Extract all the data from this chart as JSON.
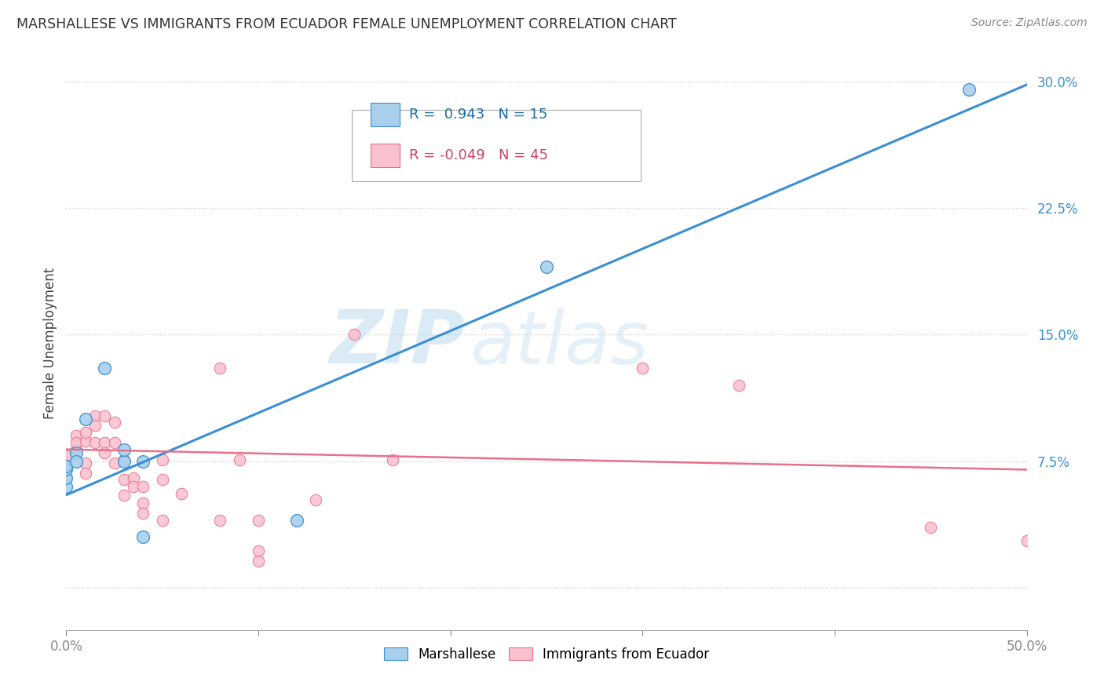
{
  "title": "MARSHALLESE VS IMMIGRANTS FROM ECUADOR FEMALE UNEMPLOYMENT CORRELATION CHART",
  "source": "Source: ZipAtlas.com",
  "ylabel": "Female Unemployment",
  "y_ticks": [
    0.0,
    0.075,
    0.15,
    0.225,
    0.3
  ],
  "y_tick_labels": [
    "",
    "7.5%",
    "15.0%",
    "22.5%",
    "30.0%"
  ],
  "x_range": [
    0.0,
    0.5
  ],
  "y_range": [
    -0.025,
    0.315
  ],
  "blue_R": 0.943,
  "blue_N": 15,
  "pink_R": -0.049,
  "pink_N": 45,
  "blue_color": "#a8d0ed",
  "pink_color": "#f9c0cf",
  "trendline_blue": "#3a8fd4",
  "trendline_pink": "#e8708a",
  "legend_label_blue": "Marshallese",
  "legend_label_pink": "Immigrants from Ecuador",
  "blue_points": [
    [
      0.0,
      0.06
    ],
    [
      0.0,
      0.065
    ],
    [
      0.0,
      0.07
    ],
    [
      0.0,
      0.072
    ],
    [
      0.005,
      0.08
    ],
    [
      0.005,
      0.075
    ],
    [
      0.01,
      0.1
    ],
    [
      0.02,
      0.13
    ],
    [
      0.03,
      0.075
    ],
    [
      0.03,
      0.082
    ],
    [
      0.04,
      0.075
    ],
    [
      0.04,
      0.03
    ],
    [
      0.12,
      0.04
    ],
    [
      0.25,
      0.19
    ],
    [
      0.47,
      0.295
    ]
  ],
  "pink_points": [
    [
      0.0,
      0.07
    ],
    [
      0.0,
      0.075
    ],
    [
      0.0,
      0.078
    ],
    [
      0.0,
      0.065
    ],
    [
      0.005,
      0.09
    ],
    [
      0.005,
      0.082
    ],
    [
      0.005,
      0.086
    ],
    [
      0.01,
      0.087
    ],
    [
      0.01,
      0.092
    ],
    [
      0.01,
      0.074
    ],
    [
      0.01,
      0.068
    ],
    [
      0.015,
      0.102
    ],
    [
      0.015,
      0.096
    ],
    [
      0.015,
      0.086
    ],
    [
      0.02,
      0.102
    ],
    [
      0.02,
      0.086
    ],
    [
      0.02,
      0.08
    ],
    [
      0.025,
      0.098
    ],
    [
      0.025,
      0.086
    ],
    [
      0.025,
      0.074
    ],
    [
      0.03,
      0.076
    ],
    [
      0.03,
      0.064
    ],
    [
      0.03,
      0.055
    ],
    [
      0.035,
      0.065
    ],
    [
      0.035,
      0.06
    ],
    [
      0.04,
      0.06
    ],
    [
      0.04,
      0.05
    ],
    [
      0.04,
      0.044
    ],
    [
      0.05,
      0.076
    ],
    [
      0.05,
      0.064
    ],
    [
      0.05,
      0.04
    ],
    [
      0.06,
      0.056
    ],
    [
      0.08,
      0.13
    ],
    [
      0.08,
      0.04
    ],
    [
      0.09,
      0.076
    ],
    [
      0.1,
      0.04
    ],
    [
      0.1,
      0.022
    ],
    [
      0.1,
      0.016
    ],
    [
      0.13,
      0.052
    ],
    [
      0.15,
      0.15
    ],
    [
      0.17,
      0.076
    ],
    [
      0.3,
      0.13
    ],
    [
      0.35,
      0.12
    ],
    [
      0.45,
      0.036
    ],
    [
      0.5,
      0.028
    ]
  ],
  "blue_trend_x": [
    0.0,
    0.5
  ],
  "blue_trend_y": [
    0.055,
    0.298
  ],
  "pink_trend_x": [
    0.0,
    0.5
  ],
  "pink_trend_y": [
    0.082,
    0.07
  ]
}
